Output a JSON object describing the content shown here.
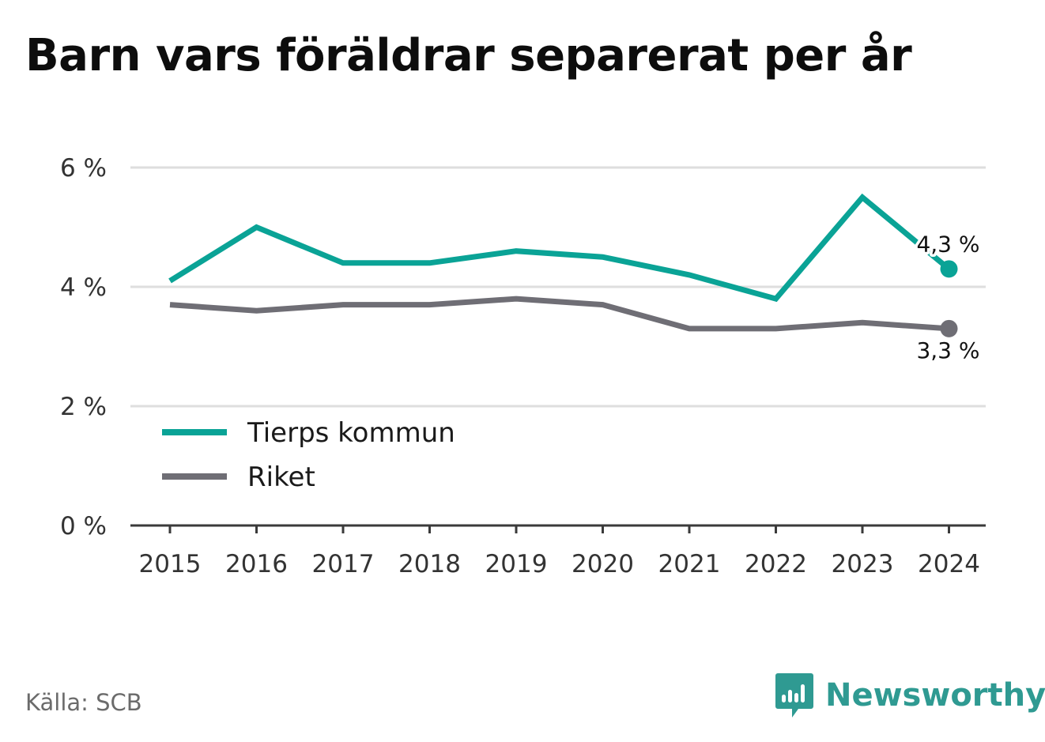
{
  "colors": {
    "tierp": "#0aa396",
    "riket": "#6f6e75",
    "grid": "#dedede",
    "axis": "#3a3a3a",
    "brand": "#2f9a92"
  },
  "brand": {
    "name": "Newsworthy",
    "icon": "bar-chart-speech-bubble-icon"
  },
  "source": "Källa: SCB",
  "chart_data": {
    "type": "line",
    "title": "Barn vars föräldrar separerat per år",
    "xlabel": "",
    "ylabel": "",
    "x": [
      "2015",
      "2016",
      "2017",
      "2018",
      "2019",
      "2020",
      "2021",
      "2022",
      "2023",
      "2024"
    ],
    "ylim": [
      0,
      6
    ],
    "yticks": [
      0,
      2,
      4,
      6
    ],
    "ytick_labels": [
      "0 %",
      "2 %",
      "4 %",
      "6 %"
    ],
    "grid": true,
    "legend_position": "lower-left",
    "series": [
      {
        "name": "Tierps kommun",
        "color": "#0aa396",
        "values": [
          4.1,
          5.0,
          4.4,
          4.4,
          4.6,
          4.5,
          4.2,
          3.8,
          5.5,
          4.3
        ],
        "end_label": "4,3 %"
      },
      {
        "name": "Riket",
        "color": "#6f6e75",
        "values": [
          3.7,
          3.6,
          3.7,
          3.7,
          3.8,
          3.7,
          3.3,
          3.3,
          3.4,
          3.3
        ],
        "end_label": "3,3 %"
      }
    ]
  }
}
